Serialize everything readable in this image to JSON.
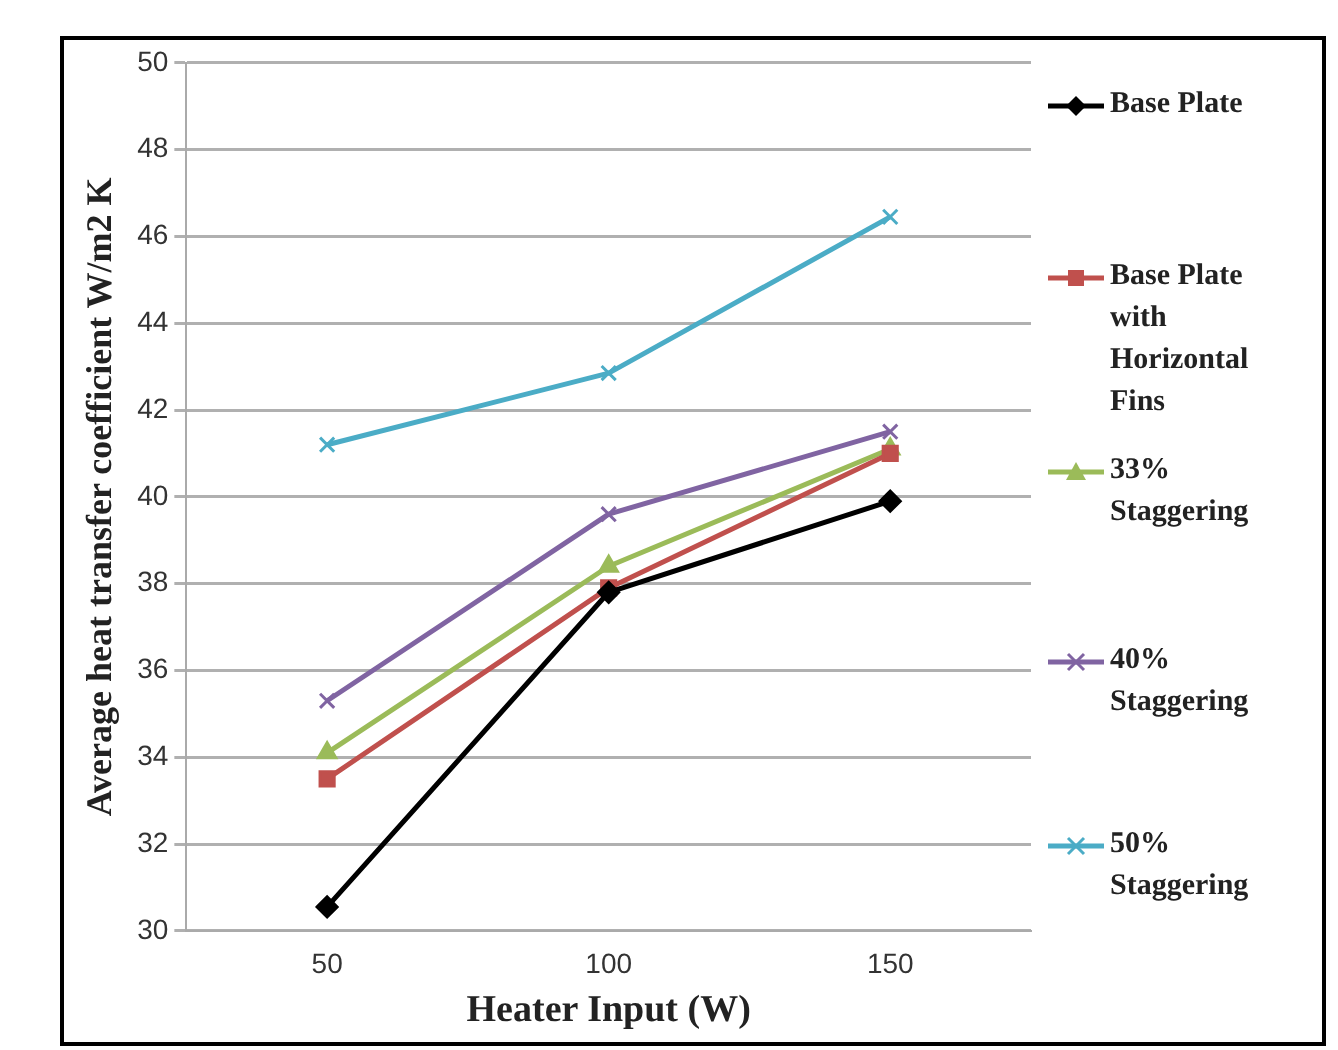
{
  "chart_data": {
    "type": "line",
    "xlabel": "Heater Input (W)",
    "ylabel": "Average heat transfer coefficient W/m2 K",
    "categories": [
      "50",
      "100",
      "150"
    ],
    "ylim": [
      30,
      50
    ],
    "yticks": [
      30,
      32,
      34,
      36,
      38,
      40,
      42,
      44,
      46,
      48,
      50
    ],
    "grid": "y",
    "legend": "right",
    "series": [
      {
        "name": "Base Plate",
        "color": "#000000",
        "marker": "diamond",
        "values": [
          30.55,
          37.8,
          39.9
        ]
      },
      {
        "name": "Base Plate with Horizontal Fins",
        "color": "#c0504d",
        "marker": "square",
        "values": [
          33.5,
          37.9,
          41.0
        ]
      },
      {
        "name": "33% Staggering",
        "color": "#9bbb59",
        "marker": "triangle",
        "values": [
          34.1,
          38.4,
          41.1
        ]
      },
      {
        "name": "40% Staggering",
        "color": "#8064a2",
        "marker": "cross",
        "values": [
          35.3,
          39.6,
          41.5
        ]
      },
      {
        "name": "50% Staggering",
        "color": "#4bacc6",
        "marker": "cross",
        "values": [
          41.2,
          42.85,
          46.45
        ]
      }
    ]
  }
}
